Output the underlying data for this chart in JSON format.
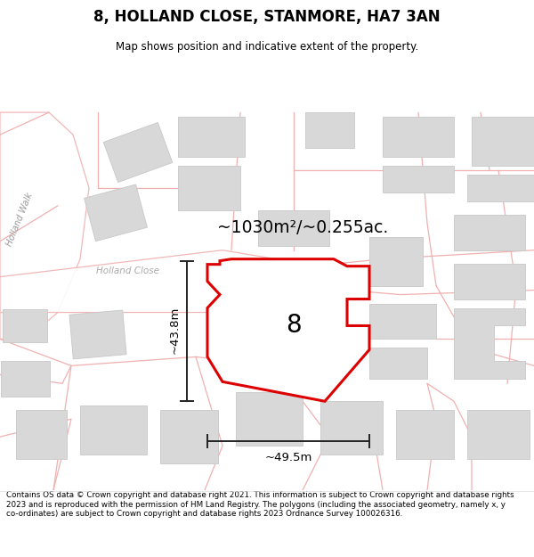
{
  "title": "8, HOLLAND CLOSE, STANMORE, HA7 3AN",
  "subtitle": "Map shows position and indicative extent of the property.",
  "area_text": "~1030m²/~0.255ac.",
  "number_label": "8",
  "dim_vertical": "~43.8m",
  "dim_horizontal": "~49.5m",
  "street_label_1": "Holland Walk",
  "street_label_2": "Holland Close",
  "bg_color": "#ffffff",
  "map_bg": "#f7f7f7",
  "road_stroke": "#f0b0b0",
  "building_fill": "#d8d8d8",
  "building_stroke": "#c8c8c8",
  "highlight_fill": "#ffffff",
  "highlight_stroke": "#dd0000",
  "dim_color": "#222222",
  "label_color": "#888888",
  "footer_text": "Contains OS data © Crown copyright and database right 2021. This information is subject to Crown copyright and database rights 2023 and is reproduced with the permission of HM Land Registry. The polygons (including the associated geometry, namely x, y co-ordinates) are subject to Crown copyright and database rights 2023 Ordnance Survey 100026316."
}
